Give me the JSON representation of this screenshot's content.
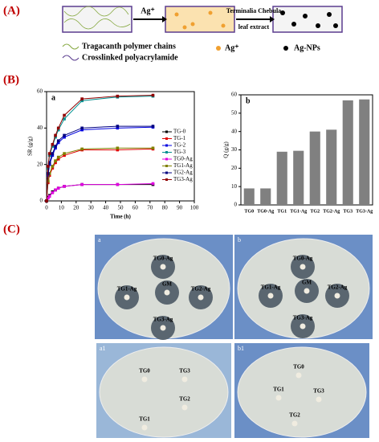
{
  "panel_a": {
    "label": "(A)",
    "arrow1": "Ag⁺",
    "arrow2_line1": "Terminalia Chebula",
    "arrow2_line2": "leaf extract",
    "legend": [
      "Tragacanth polymer chains",
      "Crosslinked polyacrylamide",
      "Ag⁺",
      "Ag-NPs"
    ]
  },
  "panel_b": {
    "label": "(B)"
  },
  "chart_data": [
    {
      "type": "line",
      "title": "a",
      "x_label": "Time (h)",
      "y_label": "SR (g/g)",
      "x": [
        0,
        1,
        2,
        4,
        6,
        8,
        12,
        24,
        48,
        72
      ],
      "xlim": [
        0,
        100
      ],
      "xticks": [
        0,
        10,
        20,
        30,
        40,
        50,
        60,
        70,
        80,
        90,
        100
      ],
      "ylim": [
        0,
        60
      ],
      "yticks": [
        0,
        20,
        40,
        60
      ],
      "series": [
        {
          "name": "TG-0",
          "color": "#000000",
          "values": [
            0,
            2,
            3,
            5,
            6,
            7,
            8,
            9,
            9,
            9
          ]
        },
        {
          "name": "TG-1",
          "color": "#e00000",
          "values": [
            0,
            10,
            14,
            18,
            21,
            23,
            25,
            28,
            28,
            28.5
          ]
        },
        {
          "name": "TG-2",
          "color": "#0000e0",
          "values": [
            0,
            14,
            20,
            25,
            29,
            32,
            35,
            39,
            40,
            40.5
          ]
        },
        {
          "name": "TG-3",
          "color": "#009090",
          "values": [
            0,
            18,
            25,
            30,
            35,
            39,
            45,
            55,
            57,
            57.5
          ]
        },
        {
          "name": "TG0-Ag",
          "color": "#e000e0",
          "values": [
            0,
            1.5,
            2.5,
            4.5,
            6,
            7,
            8,
            9,
            9,
            9.5
          ]
        },
        {
          "name": "TG1-Ag",
          "color": "#808000",
          "values": [
            0,
            11,
            15,
            19,
            22,
            24,
            26,
            28.5,
            29,
            29
          ]
        },
        {
          "name": "TG2-Ag",
          "color": "#000080",
          "values": [
            0,
            15,
            21,
            26,
            30,
            33,
            36,
            40,
            41,
            41
          ]
        },
        {
          "name": "TG3-Ag",
          "color": "#900000",
          "values": [
            0,
            19,
            26,
            31,
            36,
            40,
            47,
            56,
            57.5,
            58
          ]
        }
      ]
    },
    {
      "type": "bar",
      "title": "b",
      "y_label": "Q (g/g)",
      "color": "#808080",
      "categories": [
        "TG0",
        "TG0-Ag",
        "TG1",
        "TG1-Ag",
        "TG2",
        "TG2-Ag",
        "TG3",
        "TG3-Ag"
      ],
      "values": [
        9,
        9,
        29,
        29.5,
        40,
        41,
        57,
        57.5
      ],
      "ylim": [
        0,
        60
      ],
      "yticks": [
        0,
        10,
        20,
        30,
        40,
        50,
        60
      ]
    }
  ],
  "panel_c": {
    "label": "(C)",
    "plates": [
      {
        "name": "a",
        "labels": [
          "TG0-Ag",
          "TG1-Ag",
          "GM",
          "TG2-Ag",
          "TG3-Ag"
        ]
      },
      {
        "name": "b",
        "labels": [
          "TG0-Ag",
          "TG1-Ag",
          "GM",
          "TG2-Ag",
          "TG3-Ag"
        ]
      },
      {
        "name": "a1",
        "labels": [
          "TG0",
          "TG3",
          "TG2",
          "TG1"
        ]
      },
      {
        "name": "b1",
        "labels": [
          "TG0",
          "TG1",
          "TG3",
          "TG2"
        ]
      }
    ]
  }
}
